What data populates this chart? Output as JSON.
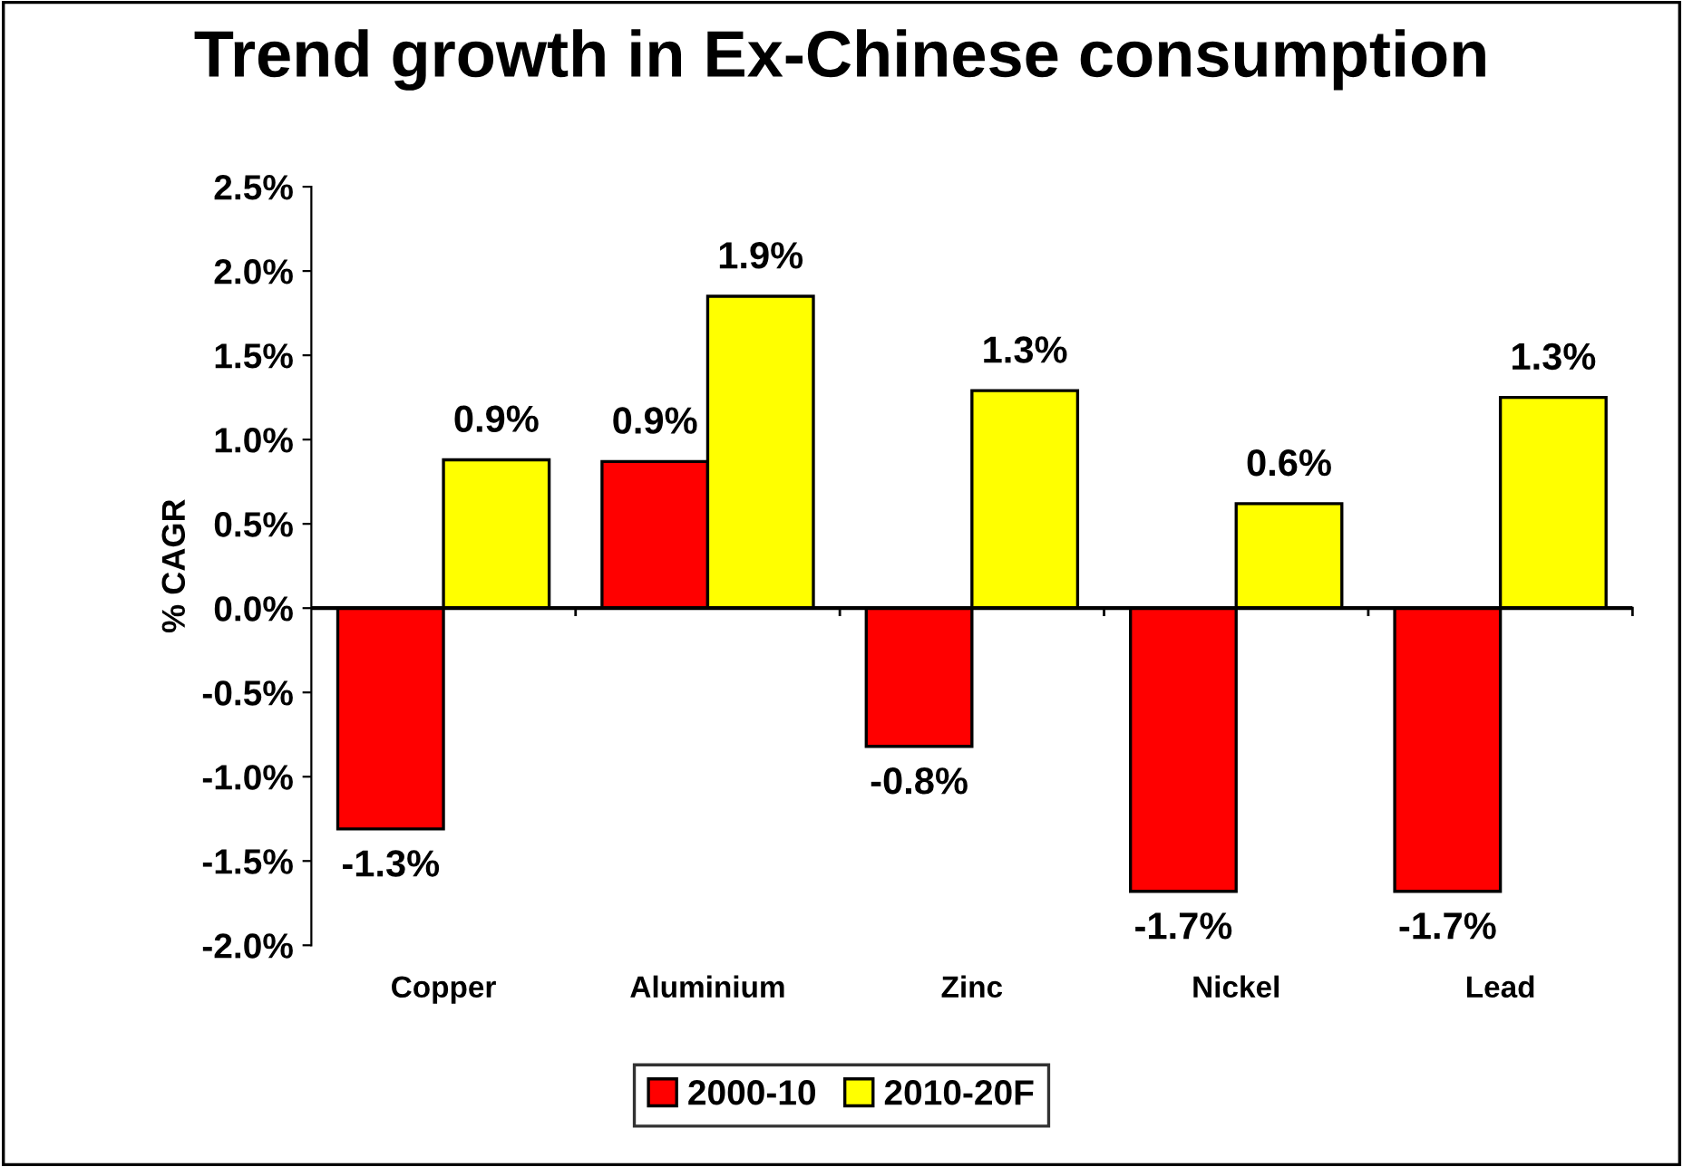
{
  "chart_data": {
    "type": "bar",
    "title": "Trend growth in Ex-Chinese consumption",
    "ylabel": "% CAGR",
    "categories": [
      "Copper",
      "Aluminium",
      "Zinc",
      "Nickel",
      "Lead"
    ],
    "series": [
      {
        "name": "2000-10",
        "color": "#ff0000",
        "values": [
          -1.31,
          0.87,
          -0.82,
          -1.68,
          -1.68
        ],
        "value_labels": [
          "-1.3%",
          "0.9%",
          "-0.8%",
          "-1.7%",
          "-1.7%"
        ]
      },
      {
        "name": "2010-20F",
        "color": "#ffff00",
        "values": [
          0.88,
          1.85,
          1.29,
          0.62,
          1.25
        ],
        "value_labels": [
          "0.9%",
          "1.9%",
          "1.3%",
          "0.6%",
          "1.3%"
        ]
      }
    ],
    "ylim": [
      -2.0,
      2.5
    ],
    "yticks": [
      {
        "value": -2.0,
        "label": "-2.0%"
      },
      {
        "value": -1.5,
        "label": "-1.5%"
      },
      {
        "value": -1.0,
        "label": "-1.0%"
      },
      {
        "value": -0.5,
        "label": "-0.5%"
      },
      {
        "value": 0.0,
        "label": "0.0%"
      },
      {
        "value": 0.5,
        "label": "0.5%"
      },
      {
        "value": 1.0,
        "label": "1.0%"
      },
      {
        "value": 1.5,
        "label": "1.5%"
      },
      {
        "value": 2.0,
        "label": "2.0%"
      },
      {
        "value": 2.5,
        "label": "2.5%"
      }
    ],
    "legend": "bottom"
  }
}
